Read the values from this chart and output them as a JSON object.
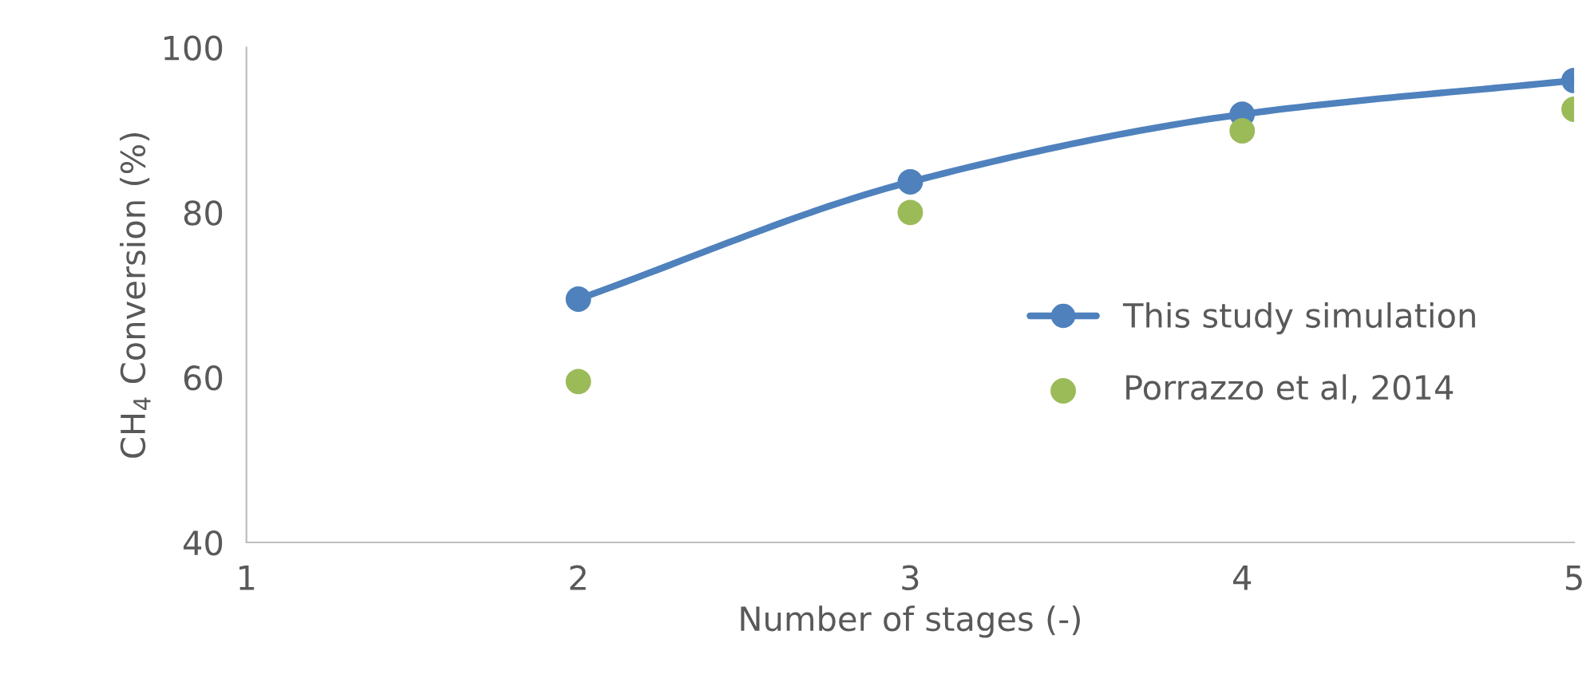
{
  "chart_data": {
    "type": "line",
    "xlabel": "Number of stages (-)",
    "ylabel": "CH$_{4}$ Conversion (%)",
    "x": [
      2,
      3,
      4,
      5
    ],
    "series": [
      {
        "name": "This study simulation",
        "color": "#4f81bd",
        "values": [
          69.5,
          83.7,
          91.9,
          96
        ],
        "marker": "circle",
        "line_style": "solid"
      },
      {
        "name": "Porrazzo et al, 2014",
        "color": "#9bbb59",
        "values": [
          59.5,
          80,
          89.9,
          92.5
        ],
        "type": "scatter",
        "marker": "circle"
      }
    ],
    "xlim": [
      1,
      5
    ],
    "xticks": [
      1,
      2,
      3,
      4,
      5
    ],
    "ylim": [
      40,
      100
    ],
    "yticks": [
      40,
      60,
      80,
      100
    ],
    "grid": false,
    "legend": "right"
  }
}
